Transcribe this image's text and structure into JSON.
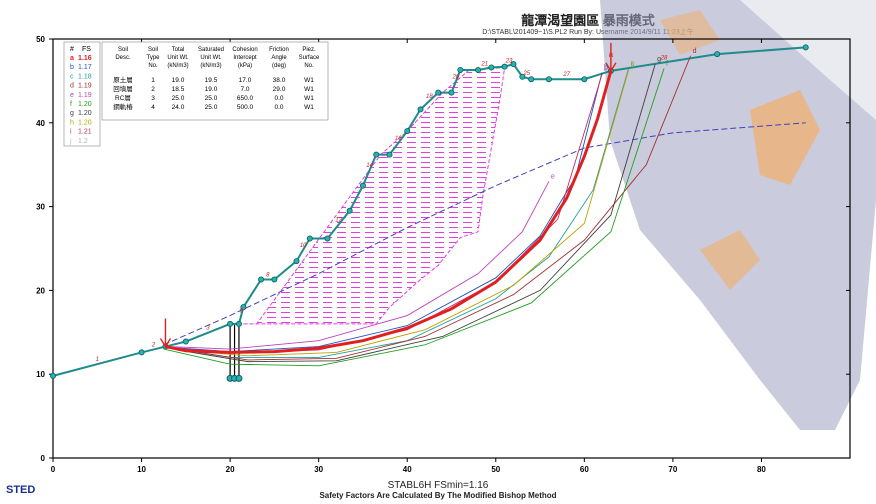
{
  "header": {
    "title": "龍潭渴望園區 暴雨模式",
    "subtitle": "D:\\STABL\\201409~1\\S.PL2   Run By: Username   2014/9/11   11:23上午"
  },
  "footer": {
    "program": "STABL6H  FSmin=1.16",
    "method": "Safety Factors Are Calculated By The Modified Bishop Method",
    "brand": "STED"
  },
  "colors": {
    "axis": "#000000",
    "surface": "#1e8c8c",
    "hatch": "#e040e0",
    "critical": "#e02020",
    "water": "#4040c0",
    "overlay_gray": "#9fa0c0",
    "overlay_orange": "#f0b070"
  },
  "fs_legend": {
    "header": [
      "#",
      "FS"
    ],
    "entries": [
      {
        "id": "a",
        "fs": "1.16",
        "color": "#e02020"
      },
      {
        "id": "b",
        "fs": "1.17",
        "color": "#2050c0"
      },
      {
        "id": "c",
        "fs": "1.18",
        "color": "#20a0a0"
      },
      {
        "id": "d",
        "fs": "1.19",
        "color": "#a03030"
      },
      {
        "id": "e",
        "fs": "1.19",
        "color": "#c040c0"
      },
      {
        "id": "f",
        "fs": "1.20",
        "color": "#20a020"
      },
      {
        "id": "g",
        "fs": "1.20",
        "color": "#404040"
      },
      {
        "id": "h",
        "fs": "1.20",
        "color": "#c0a000"
      },
      {
        "id": "i",
        "fs": "1.21",
        "color": "#c03060"
      },
      {
        "id": "j",
        "fs": "1.2",
        "color": "#b0b0b0"
      }
    ]
  },
  "soil_table": {
    "headers": [
      [
        "Soil",
        "Desc."
      ],
      [
        "Soil",
        "Type",
        "No."
      ],
      [
        "Total",
        "Unit Wt.",
        "(kN/m3)"
      ],
      [
        "Saturated",
        "Unit Wt.",
        "(kN/m3)"
      ],
      [
        "Cohesion",
        "Intercept",
        "(kPa)"
      ],
      [
        "Friction",
        "Angle",
        "(deg)"
      ],
      [
        "Piez.",
        "Surface",
        "No."
      ]
    ],
    "rows": [
      [
        "原土層",
        "1",
        "19.0",
        "19.5",
        "17.0",
        "38.0",
        "W1"
      ],
      [
        "回填層",
        "2",
        "18.5",
        "19.0",
        "7.0",
        "29.0",
        "W1"
      ],
      [
        "RC層",
        "3",
        "25.0",
        "25.0",
        "650.0",
        "0.0",
        "W1"
      ],
      [
        "鋼軌樁",
        "4",
        "24.0",
        "25.0",
        "500.0",
        "0.0",
        "W1"
      ]
    ]
  },
  "chart_data": {
    "type": "line",
    "title": "",
    "xlabel": "",
    "ylabel": "",
    "xlim": [
      0,
      90
    ],
    "ylim": [
      0,
      50
    ],
    "x_ticks": [
      "0",
      "10",
      "20",
      "30",
      "40",
      "50",
      "60",
      "70",
      "80"
    ],
    "y_ticks": [
      "0",
      "10",
      "20",
      "30",
      "40",
      "50"
    ],
    "ground_surface": {
      "x": [
        0,
        10,
        12.7,
        15,
        20,
        21,
        21.5,
        23.5,
        25,
        27.5,
        29,
        31,
        33.5,
        35,
        36.5,
        38,
        40,
        41.5,
        43.5,
        45,
        46,
        48,
        49.5,
        51,
        52,
        53,
        54,
        56,
        60,
        63,
        75,
        85
      ],
      "y": [
        9.8,
        12.6,
        13.3,
        13.9,
        16.0,
        16.0,
        18.0,
        21.3,
        21.3,
        23.5,
        26.2,
        26.2,
        29.5,
        32.5,
        36.2,
        36.2,
        39.0,
        41.6,
        43.6,
        43.6,
        46.3,
        46.3,
        46.6,
        46.7,
        47.0,
        45.5,
        45.2,
        45.2,
        45.2,
        46.2,
        48.2,
        49.0
      ]
    },
    "piezometric_line": {
      "x": [
        12.5,
        20,
        30,
        40,
        50,
        60,
        70,
        85
      ],
      "y": [
        13.5,
        17.0,
        22.0,
        27.5,
        32.5,
        37.0,
        38.8,
        40.0
      ]
    },
    "critical_surface": {
      "label": "a",
      "x": [
        12.7,
        15,
        20,
        25,
        30,
        35,
        40,
        45,
        50,
        55,
        58,
        60,
        61.5,
        63
      ],
      "y": [
        13.3,
        12.8,
        12.6,
        12.7,
        13.1,
        14.0,
        15.5,
        17.8,
        21.0,
        26.0,
        31.0,
        36.0,
        40.5,
        46.2
      ]
    },
    "trial_surfaces": [
      {
        "label": "b",
        "x": [
          13,
          20,
          30,
          40,
          50,
          55,
          59,
          62
        ],
        "y": [
          13.2,
          12.7,
          13.3,
          15.8,
          21.5,
          26.5,
          33.5,
          46.0
        ]
      },
      {
        "label": "c",
        "x": [
          14,
          20,
          30,
          40,
          50,
          56,
          61,
          65
        ],
        "y": [
          13.0,
          12.0,
          12.0,
          14.0,
          19.0,
          24.0,
          32.0,
          46.5
        ]
      },
      {
        "label": "d",
        "x": [
          14,
          22,
          32,
          42,
          52,
          60,
          67,
          72
        ],
        "y": [
          13.0,
          11.7,
          11.9,
          14.5,
          19.5,
          26.0,
          35.0,
          48.0
        ]
      },
      {
        "label": "e",
        "x": [
          13,
          20,
          30,
          40,
          48,
          53,
          56
        ],
        "y": [
          13.3,
          13.0,
          14.0,
          17.0,
          22.0,
          27.0,
          33.0
        ]
      },
      {
        "label": "f",
        "x": [
          12.5,
          20,
          30,
          42,
          54,
          63,
          69
        ],
        "y": [
          13.0,
          11.2,
          11.0,
          13.5,
          18.5,
          27.0,
          46.5
        ]
      },
      {
        "label": "g",
        "x": [
          14,
          22,
          32,
          44,
          55,
          63,
          68
        ],
        "y": [
          12.9,
          11.5,
          11.6,
          14.5,
          20.0,
          29.0,
          47.0
        ]
      },
      {
        "label": "h",
        "x": [
          14,
          22,
          32,
          42,
          52,
          60,
          65
        ],
        "y": [
          12.9,
          12.2,
          12.6,
          15.3,
          20.6,
          28.0,
          46.3
        ]
      },
      {
        "label": "i",
        "x": [
          13,
          20,
          30,
          40,
          50,
          57,
          62
        ],
        "y": [
          13.2,
          12.5,
          12.9,
          15.3,
          21.0,
          28.5,
          45.8
        ]
      }
    ],
    "rc_layer_outline": {
      "x": [
        21.5,
        36.5,
        38,
        41.5,
        43.5,
        45,
        46,
        48,
        48.5,
        49.5,
        50.5,
        51,
        47,
        44,
        40,
        37,
        23
      ],
      "y": [
        16.0,
        16.0,
        18.0,
        21.3,
        23.0,
        25.0,
        26.3,
        27.0,
        31.0,
        37.0,
        43.0,
        46.6,
        46.3,
        43.6,
        39.0,
        36.2,
        16.0
      ]
    },
    "piles": [
      {
        "x": 20,
        "top": 16.0,
        "bottom": 9.5
      },
      {
        "x": 20.5,
        "top": 16.0,
        "bottom": 9.5
      },
      {
        "x": 21,
        "top": 16.0,
        "bottom": 9.5
      }
    ],
    "load_arrows": [
      {
        "x": 12.7,
        "y": 13.3
      },
      {
        "x": 63,
        "y": 46.2
      }
    ],
    "boundary_numbers": [
      "1",
      "2",
      "3",
      "6",
      "8",
      "10",
      "12",
      "14",
      "16",
      "18",
      "20",
      "21",
      "23",
      "25",
      "27",
      "28"
    ]
  }
}
